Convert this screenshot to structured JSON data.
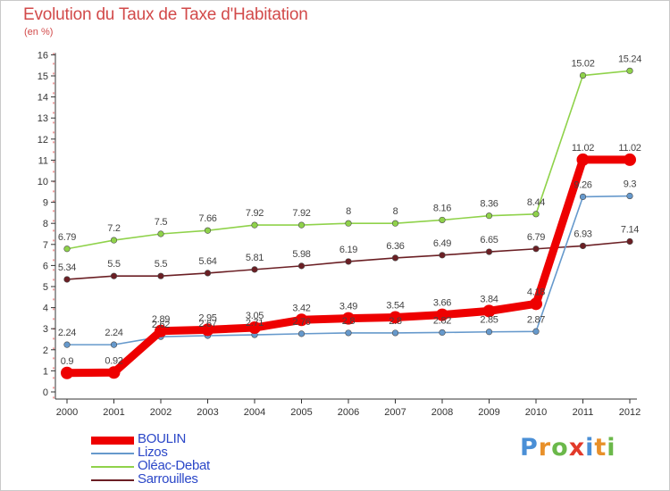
{
  "chart_data": {
    "type": "line",
    "title": "Evolution du Taux de Taxe d'Habitation",
    "subtitle": "(en %)",
    "xlabel": "",
    "ylabel": "",
    "categories": [
      "2000",
      "2001",
      "2002",
      "2003",
      "2004",
      "2005",
      "2006",
      "2007",
      "2008",
      "2009",
      "2010",
      "2011",
      "2012"
    ],
    "ylim": [
      0,
      16
    ],
    "yticks": [
      0,
      1,
      2,
      3,
      4,
      5,
      6,
      7,
      8,
      9,
      10,
      11,
      12,
      13,
      14,
      15,
      16
    ],
    "grid": false,
    "legend_position": "bottom-left",
    "series": [
      {
        "name": "Oléac-Debat",
        "color": "#8fd24a",
        "values": [
          6.79,
          7.2,
          7.5,
          7.66,
          7.92,
          7.92,
          8,
          8,
          8.16,
          8.36,
          8.44,
          15.02,
          15.24
        ],
        "labels": [
          "6.79",
          "7.2",
          "7.5",
          "7.66",
          "7.92",
          "7.92",
          "8",
          "8",
          "8.16",
          "8.36",
          "8.44",
          "15.02",
          "15.24"
        ]
      },
      {
        "name": "Sarrouilles",
        "color": "#6b1f24",
        "values": [
          5.34,
          5.5,
          5.5,
          5.64,
          5.81,
          5.98,
          6.19,
          6.36,
          6.49,
          6.65,
          6.79,
          6.93,
          7.14
        ],
        "labels": [
          "5.34",
          "5.5",
          "5.5",
          "5.64",
          "5.81",
          "5.98",
          "6.19",
          "6.36",
          "6.49",
          "6.65",
          "6.79",
          "6.93",
          "7.14"
        ]
      },
      {
        "name": "Lizos",
        "color": "#6699cc",
        "values": [
          2.24,
          2.24,
          2.62,
          2.67,
          2.71,
          2.76,
          2.8,
          2.8,
          2.82,
          2.85,
          2.87,
          9.26,
          9.3
        ],
        "labels": [
          "2.24",
          "2.24",
          "2.62",
          "2.67",
          "2.71",
          "2.76",
          "2.8",
          "2.8",
          "2.82",
          "2.85",
          "2.87",
          "9.26",
          "9.3"
        ]
      },
      {
        "name": "BOULIN",
        "color": "#ee0000",
        "values": [
          0.9,
          0.92,
          2.89,
          2.95,
          3.05,
          3.42,
          3.49,
          3.54,
          3.66,
          3.84,
          4.18,
          11.02,
          11.02
        ],
        "labels": [
          "0.9",
          "0.92",
          "2.89",
          "2.95",
          "3.05",
          "3.42",
          "3.49",
          "3.54",
          "3.66",
          "3.84",
          "4.18",
          "11.02",
          "11.02"
        ]
      }
    ],
    "legend": [
      "BOULIN",
      "Lizos",
      "Oléac-Debat",
      "Sarrouilles"
    ]
  },
  "logo": {
    "text": "Proxiti",
    "letters": [
      {
        "ch": "P",
        "color": "#4a8fd6"
      },
      {
        "ch": "r",
        "color": "#e8902a"
      },
      {
        "ch": "o",
        "color": "#6bb84a"
      },
      {
        "ch": "x",
        "color": "#e23a2a"
      },
      {
        "ch": "i",
        "color": "#4a8fd6"
      },
      {
        "ch": "t",
        "color": "#e8902a"
      },
      {
        "ch": "i",
        "color": "#6bb84a"
      }
    ]
  }
}
